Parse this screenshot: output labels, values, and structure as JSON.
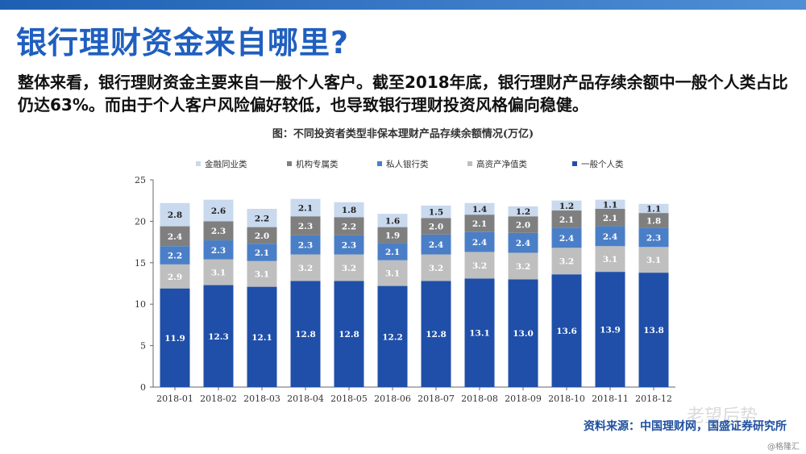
{
  "page": {
    "title": "银行理财资金来自哪里?",
    "intro": "整体来看，银行理财资金主要来自一般个人客户。截至2018年底，银行理财产品存续余额中一般个人类占比仍达63%。而由于个人客户风险偏好较低，也导致银行理财投资风格偏向稳健。",
    "source": "资料来源：中国理财网，国盛证券研究所",
    "watermark": "老望后势",
    "watermark_sub": "@格隆汇"
  },
  "chart_data": {
    "type": "bar",
    "stacked": true,
    "title": "图：不同投资者类型非保本理财产品存续余额情况(万亿)",
    "categories": [
      "2018-01",
      "2018-02",
      "2018-03",
      "2018-04",
      "2018-05",
      "2018-06",
      "2018-07",
      "2018-08",
      "2018-09",
      "2018-10",
      "2018-11",
      "2018-12"
    ],
    "ylim": [
      0,
      25
    ],
    "yticks": [
      0,
      5,
      10,
      15,
      20,
      25
    ],
    "legend_position": "top",
    "grid": false,
    "series": [
      {
        "name": "一般个人类",
        "color": "#1f4fa8",
        "label_color": "#ffffff",
        "values": [
          11.9,
          12.3,
          12.1,
          12.8,
          12.8,
          12.2,
          12.8,
          13.1,
          13.0,
          13.6,
          13.9,
          13.8
        ]
      },
      {
        "name": "高资产净值类",
        "color": "#bfbfbf",
        "label_color": "#ffffff",
        "values": [
          2.9,
          3.1,
          3.1,
          3.2,
          3.2,
          3.1,
          3.2,
          3.2,
          3.2,
          3.2,
          3.1,
          3.1
        ]
      },
      {
        "name": "私人银行类",
        "color": "#4a7fc8",
        "label_color": "#ffffff",
        "values": [
          2.2,
          2.3,
          2.1,
          2.3,
          2.3,
          2.1,
          2.4,
          2.4,
          2.4,
          2.4,
          2.4,
          2.3
        ]
      },
      {
        "name": "机构专属类",
        "color": "#7f7f7f",
        "label_color": "#ffffff",
        "values": [
          2.4,
          2.3,
          2.0,
          2.3,
          2.2,
          1.9,
          2.0,
          2.1,
          2.0,
          2.1,
          2.1,
          1.8
        ]
      },
      {
        "name": "金融同业类",
        "color": "#c9d9ee",
        "label_color": "#222222",
        "values": [
          2.8,
          2.6,
          2.2,
          2.1,
          1.8,
          1.6,
          1.5,
          1.4,
          1.2,
          1.2,
          1.1,
          1.1
        ]
      }
    ],
    "legend_order": [
      "金融同业类",
      "机构专属类",
      "私人银行类",
      "高资产净值类",
      "一般个人类"
    ]
  }
}
